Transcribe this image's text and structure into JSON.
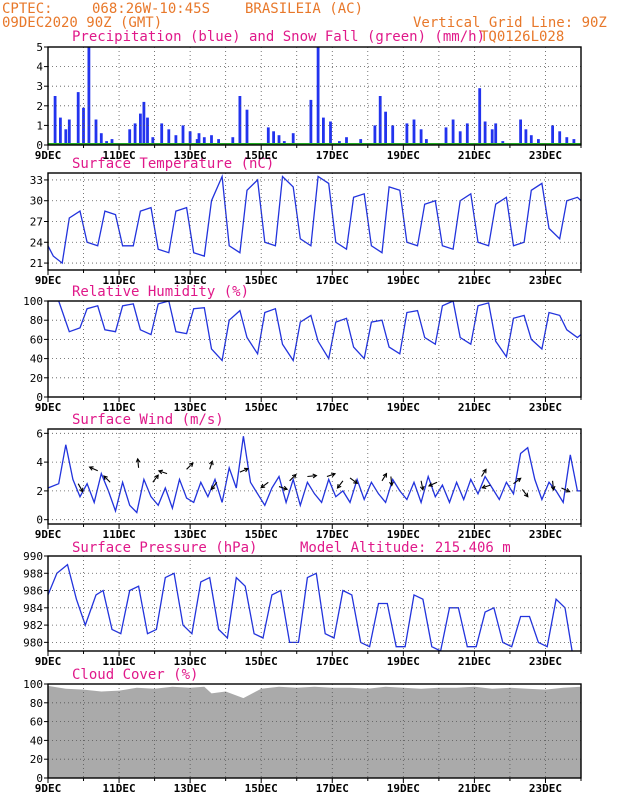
{
  "header": {
    "source": "CPTEC:",
    "coords": "068:26W-10:45S",
    "station": "BRASILEIA (AC)",
    "datetime": "09DEC2020 90Z (GMT)",
    "grid_note": "Vertical Grid Line: 90Z",
    "code": "TQ0126L028"
  },
  "x_ticks": [
    "9DEC",
    "11DEC",
    "13DEC",
    "15DEC",
    "17DEC",
    "19DEC",
    "21DEC",
    "23DEC"
  ],
  "colors": {
    "line": "#2233dd",
    "precip": "#2233ee",
    "snow": "#22aa22",
    "cloud": "#aaaaaa",
    "title": "#e0198a",
    "header": "#e8782a"
  },
  "chart_data": [
    {
      "type": "bar",
      "id": "precip",
      "title": "Precipitation (blue) and Snow Fall (green) (mm/h)",
      "ylim": [
        0,
        5
      ],
      "yticks": [
        "0",
        "1",
        "2",
        "3",
        "4",
        "5"
      ],
      "x_days": [
        0.2,
        0.35,
        0.5,
        0.6,
        0.85,
        1.0,
        1.15,
        1.35,
        1.5,
        1.65,
        1.8,
        2.3,
        2.45,
        2.6,
        2.7,
        2.8,
        2.95,
        3.2,
        3.4,
        3.6,
        3.8,
        4.0,
        4.2,
        4.25,
        4.4,
        4.6,
        4.8,
        5.2,
        5.4,
        5.6,
        6.2,
        6.35,
        6.5,
        6.65,
        6.9,
        7.4,
        7.6,
        7.75,
        7.95,
        8.2,
        8.4,
        8.6,
        8.8,
        9.2,
        9.35,
        9.5,
        9.7,
        10.1,
        10.3,
        10.5,
        10.65,
        11.2,
        11.4,
        11.6,
        11.8,
        12.15,
        12.3,
        12.5,
        12.6,
        12.8,
        13.3,
        13.45,
        13.6,
        13.8,
        14.2,
        14.4,
        14.6,
        14.8
      ],
      "values": [
        2.5,
        1.4,
        0.8,
        1.3,
        2.7,
        1.9,
        5.0,
        1.3,
        0.6,
        0.2,
        0.3,
        0.8,
        1.1,
        1.6,
        2.2,
        1.4,
        0.4,
        1.1,
        0.8,
        0.5,
        1.0,
        0.7,
        0.3,
        0.6,
        0.4,
        0.5,
        0.3,
        0.4,
        2.5,
        1.8,
        0.9,
        0.7,
        0.5,
        0.2,
        0.6,
        2.3,
        5.0,
        1.4,
        1.2,
        0.2,
        0.4,
        0.1,
        0.3,
        1.0,
        2.5,
        1.7,
        1.0,
        1.1,
        1.3,
        0.8,
        0.3,
        0.9,
        1.3,
        0.7,
        1.1,
        2.9,
        1.2,
        0.8,
        1.1,
        0.2,
        1.3,
        0.8,
        0.5,
        0.3,
        1.0,
        0.7,
        0.4,
        0.3
      ],
      "snow_values": [
        0
      ]
    },
    {
      "type": "line",
      "id": "temp",
      "title": "Surface Temperature (nC)",
      "ylim": [
        20,
        34
      ],
      "yticks": [
        "21",
        "24",
        "27",
        "30",
        "33"
      ],
      "x_days": [
        0,
        0.15,
        0.4,
        0.6,
        0.9,
        1.1,
        1.4,
        1.6,
        1.9,
        2.1,
        2.4,
        2.6,
        2.9,
        3.1,
        3.4,
        3.6,
        3.9,
        4.1,
        4.4,
        4.6,
        4.9,
        5.1,
        5.4,
        5.6,
        5.9,
        6.1,
        6.4,
        6.6,
        6.9,
        7.1,
        7.4,
        7.6,
        7.9,
        8.1,
        8.4,
        8.6,
        8.9,
        9.1,
        9.4,
        9.6,
        9.9,
        10.1,
        10.4,
        10.6,
        10.9,
        11.1,
        11.4,
        11.6,
        11.9,
        12.1,
        12.4,
        12.6,
        12.9,
        13.1,
        13.4,
        13.6,
        13.9,
        14.1,
        14.4,
        14.6,
        14.9,
        15.0
      ],
      "values": [
        23.5,
        22.0,
        21.0,
        27.5,
        28.5,
        24.0,
        23.5,
        28.5,
        28.0,
        23.5,
        23.5,
        28.5,
        29.0,
        23.0,
        22.5,
        28.5,
        29.0,
        22.5,
        22.0,
        30.0,
        33.5,
        23.5,
        22.5,
        31.5,
        33.0,
        24.0,
        23.5,
        33.5,
        32.0,
        24.5,
        23.5,
        33.5,
        32.5,
        24.0,
        23.0,
        30.5,
        31.0,
        23.5,
        22.5,
        32.0,
        31.5,
        24.0,
        23.5,
        29.5,
        30.0,
        23.5,
        23.0,
        30.0,
        31.0,
        24.0,
        23.5,
        29.5,
        30.5,
        23.5,
        24.0,
        31.5,
        32.5,
        26.0,
        24.5,
        30.0,
        30.5,
        30.0
      ]
    },
    {
      "type": "line",
      "id": "rh",
      "title": "Relative Humidity (%)",
      "ylim": [
        0,
        100
      ],
      "yticks": [
        "0",
        "20",
        "40",
        "60",
        "80",
        "100"
      ],
      "x_days": [
        0,
        0.3,
        0.6,
        0.9,
        1.1,
        1.4,
        1.6,
        1.9,
        2.1,
        2.4,
        2.6,
        2.9,
        3.1,
        3.4,
        3.6,
        3.9,
        4.1,
        4.4,
        4.6,
        4.9,
        5.1,
        5.4,
        5.6,
        5.9,
        6.1,
        6.4,
        6.6,
        6.9,
        7.1,
        7.4,
        7.6,
        7.9,
        8.1,
        8.4,
        8.6,
        8.9,
        9.1,
        9.4,
        9.6,
        9.9,
        10.1,
        10.4,
        10.6,
        10.9,
        11.1,
        11.4,
        11.6,
        11.9,
        12.1,
        12.4,
        12.6,
        12.9,
        13.1,
        13.4,
        13.6,
        13.9,
        14.1,
        14.4,
        14.6,
        14.9,
        15.0
      ],
      "values": [
        100,
        100,
        68,
        72,
        92,
        95,
        70,
        68,
        95,
        97,
        70,
        65,
        97,
        100,
        68,
        66,
        92,
        93,
        50,
        38,
        80,
        90,
        62,
        45,
        88,
        92,
        55,
        38,
        78,
        85,
        58,
        40,
        78,
        82,
        52,
        40,
        78,
        80,
        52,
        45,
        88,
        90,
        62,
        55,
        95,
        100,
        62,
        55,
        95,
        98,
        58,
        42,
        82,
        85,
        60,
        50,
        88,
        85,
        70,
        62,
        65
      ]
    },
    {
      "type": "line",
      "id": "wind",
      "title": "Surface Wind (m/s)",
      "ylim": [
        -0.3,
        6.3
      ],
      "yticks": [
        "0",
        "2",
        "4",
        "6"
      ],
      "x_days": [
        0,
        0.3,
        0.5,
        0.7,
        0.9,
        1.1,
        1.3,
        1.5,
        1.7,
        1.9,
        2.1,
        2.3,
        2.5,
        2.7,
        2.9,
        3.1,
        3.3,
        3.5,
        3.7,
        3.9,
        4.1,
        4.3,
        4.5,
        4.7,
        4.9,
        5.1,
        5.3,
        5.5,
        5.7,
        5.9,
        6.1,
        6.3,
        6.5,
        6.7,
        6.9,
        7.1,
        7.3,
        7.5,
        7.7,
        7.9,
        8.1,
        8.3,
        8.5,
        8.7,
        8.9,
        9.1,
        9.3,
        9.5,
        9.7,
        9.9,
        10.1,
        10.3,
        10.5,
        10.7,
        10.9,
        11.1,
        11.3,
        11.5,
        11.7,
        11.9,
        12.1,
        12.3,
        12.5,
        12.7,
        12.9,
        13.1,
        13.3,
        13.5,
        13.7,
        13.9,
        14.1,
        14.3,
        14.5,
        14.7,
        14.9,
        15.0
      ],
      "values": [
        2.2,
        2.5,
        5.2,
        2.8,
        1.6,
        2.5,
        1.2,
        3.2,
        2.0,
        0.6,
        2.6,
        1.0,
        0.5,
        2.8,
        1.6,
        1.0,
        2.2,
        0.8,
        2.8,
        1.5,
        1.2,
        2.6,
        1.6,
        2.8,
        1.2,
        3.6,
        2.2,
        5.8,
        2.6,
        1.8,
        1.0,
        2.2,
        3.0,
        1.2,
        2.8,
        1.0,
        2.6,
        1.8,
        1.2,
        2.8,
        1.6,
        2.0,
        1.2,
        2.8,
        1.4,
        2.6,
        1.8,
        1.2,
        2.8,
        2.0,
        1.4,
        2.6,
        1.2,
        3.0,
        1.6,
        2.4,
        1.2,
        2.6,
        1.4,
        2.8,
        1.8,
        3.0,
        2.2,
        1.4,
        2.6,
        1.8,
        4.6,
        5.0,
        2.8,
        1.4,
        2.6,
        2.0,
        1.2,
        4.5,
        2.0,
        2.0
      ],
      "arrows": [
        {
          "d": 0.85,
          "v": 2.5,
          "u_dir": 0.5,
          "v_dir": -0.9
        },
        {
          "d": 1.4,
          "v": 3.4,
          "u_dir": -0.9,
          "v_dir": 0.4
        },
        {
          "d": 1.75,
          "v": 2.6,
          "u_dir": -0.7,
          "v_dir": 0.7
        },
        {
          "d": 2.55,
          "v": 3.6,
          "u_dir": -0.1,
          "v_dir": 1.0
        },
        {
          "d": 2.95,
          "v": 2.6,
          "u_dir": 0.6,
          "v_dir": 0.8
        },
        {
          "d": 3.35,
          "v": 3.2,
          "u_dir": -0.9,
          "v_dir": 0.3
        },
        {
          "d": 3.9,
          "v": 3.5,
          "u_dir": 0.7,
          "v_dir": 0.7
        },
        {
          "d": 4.55,
          "v": 3.5,
          "u_dir": 0.3,
          "v_dir": 0.9
        },
        {
          "d": 4.75,
          "v": 2.6,
          "u_dir": -0.6,
          "v_dir": -0.8
        },
        {
          "d": 5.4,
          "v": 3.3,
          "u_dir": 0.9,
          "v_dir": 0.4
        },
        {
          "d": 6.2,
          "v": 2.6,
          "u_dir": -0.8,
          "v_dir": -0.6
        },
        {
          "d": 6.5,
          "v": 2.3,
          "u_dir": 0.9,
          "v_dir": -0.3
        },
        {
          "d": 6.8,
          "v": 2.7,
          "u_dir": 0.7,
          "v_dir": 0.7
        },
        {
          "d": 7.3,
          "v": 3.0,
          "u_dir": 1.0,
          "v_dir": 0.1
        },
        {
          "d": 7.85,
          "v": 3.0,
          "u_dir": 0.9,
          "v_dir": 0.3
        },
        {
          "d": 8.3,
          "v": 2.7,
          "u_dir": -0.6,
          "v_dir": -0.8
        },
        {
          "d": 8.5,
          "v": 2.9,
          "u_dir": 0.8,
          "v_dir": -0.6
        },
        {
          "d": 9.4,
          "v": 2.7,
          "u_dir": 0.5,
          "v_dir": 0.8
        },
        {
          "d": 9.65,
          "v": 3.0,
          "u_dir": 0.1,
          "v_dir": -1.0
        },
        {
          "d": 10.5,
          "v": 2.7,
          "u_dir": 0.2,
          "v_dir": -1.0
        },
        {
          "d": 10.95,
          "v": 2.6,
          "u_dir": -0.9,
          "v_dir": -0.4
        },
        {
          "d": 12.2,
          "v": 3.0,
          "u_dir": 0.5,
          "v_dir": 0.8
        },
        {
          "d": 12.45,
          "v": 2.4,
          "u_dir": -0.9,
          "v_dir": -0.3
        },
        {
          "d": 13.1,
          "v": 2.5,
          "u_dir": 0.8,
          "v_dir": 0.6
        },
        {
          "d": 13.35,
          "v": 2.1,
          "u_dir": 0.6,
          "v_dir": -0.8
        },
        {
          "d": 14.2,
          "v": 2.7,
          "u_dir": 0.1,
          "v_dir": -1.0
        },
        {
          "d": 14.45,
          "v": 2.2,
          "u_dir": 0.9,
          "v_dir": -0.4
        }
      ]
    },
    {
      "type": "line",
      "id": "press",
      "title": "Surface Pressure (hPa)",
      "note": "Model Altitude: 215.406 m",
      "ylim": [
        979,
        990
      ],
      "yticks": [
        "980",
        "982",
        "984",
        "986",
        "988",
        "990"
      ],
      "x_days": [
        0,
        0.25,
        0.55,
        0.8,
        1.05,
        1.35,
        1.55,
        1.8,
        2.05,
        2.3,
        2.55,
        2.8,
        3.05,
        3.3,
        3.55,
        3.8,
        4.05,
        4.3,
        4.55,
        4.8,
        5.05,
        5.3,
        5.55,
        5.8,
        6.05,
        6.3,
        6.55,
        6.8,
        7.05,
        7.3,
        7.55,
        7.8,
        8.05,
        8.3,
        8.55,
        8.8,
        9.05,
        9.3,
        9.55,
        9.8,
        10.05,
        10.3,
        10.55,
        10.8,
        11.05,
        11.3,
        11.55,
        11.8,
        12.05,
        12.3,
        12.55,
        12.8,
        13.05,
        13.3,
        13.55,
        13.8,
        14.05,
        14.3,
        14.55,
        14.75
      ],
      "values": [
        985.5,
        988.0,
        989.0,
        985.0,
        982.0,
        985.5,
        986.0,
        981.5,
        981.0,
        986.0,
        986.5,
        981.0,
        981.5,
        987.5,
        988.0,
        982.0,
        981.0,
        987.0,
        987.5,
        981.5,
        980.5,
        987.5,
        986.5,
        981.0,
        980.5,
        985.5,
        986.0,
        980.0,
        980.0,
        987.5,
        988.0,
        981.0,
        980.5,
        986.0,
        985.5,
        980.0,
        979.5,
        984.5,
        984.5,
        979.5,
        979.5,
        985.5,
        985.0,
        979.5,
        979.0,
        984.0,
        984.0,
        979.5,
        979.5,
        983.5,
        984.0,
        980.0,
        979.5,
        983.0,
        983.0,
        980.0,
        979.5,
        985.0,
        984.0,
        979.0
      ]
    },
    {
      "type": "area",
      "id": "cloud",
      "title": "Cloud Cover (%)",
      "ylim": [
        0,
        100
      ],
      "yticks": [
        "0",
        "20",
        "40",
        "60",
        "80",
        "100"
      ],
      "x_days": [
        0,
        0.5,
        1.0,
        1.5,
        2.0,
        2.5,
        3.0,
        3.5,
        4.0,
        4.4,
        4.6,
        5.0,
        5.5,
        6.0,
        6.5,
        7.0,
        7.5,
        8.0,
        8.5,
        9.0,
        9.5,
        10.0,
        10.5,
        11.0,
        11.5,
        12.0,
        12.5,
        13.0,
        13.5,
        14.0,
        14.5,
        15.0
      ],
      "values": [
        98,
        95,
        94,
        92,
        93,
        96,
        95,
        97,
        96,
        97,
        90,
        92,
        85,
        95,
        97,
        96,
        97,
        96,
        96,
        95,
        97,
        96,
        95,
        96,
        96,
        97,
        95,
        96,
        95,
        94,
        96,
        97
      ]
    }
  ]
}
